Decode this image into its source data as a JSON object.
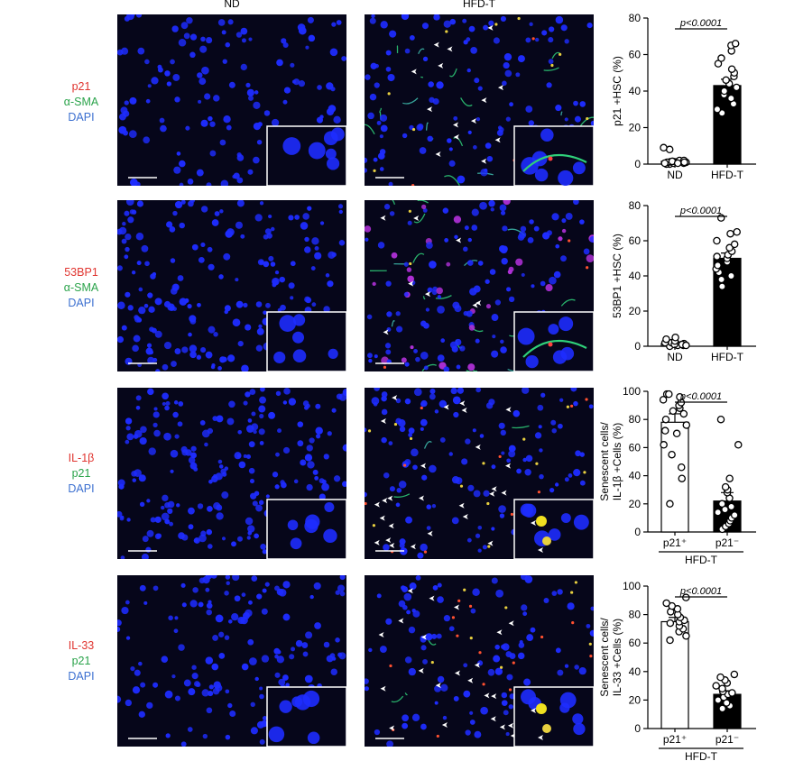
{
  "columns": [
    "ND",
    "HFD-T"
  ],
  "colors": {
    "red": "#e0342f",
    "green": "#2aa34a",
    "blue": "#3b6fd0",
    "nucleus": "#1e2cff",
    "background": "#06061a"
  },
  "rows": [
    {
      "stain": [
        {
          "text": "p21",
          "color": "#e0342f"
        },
        {
          "text": "α-SMA",
          "color": "#2aa34a"
        },
        {
          "text": "DAPI",
          "color": "#3b6fd0"
        }
      ]
    },
    {
      "stain": [
        {
          "text": "53BP1",
          "color": "#e0342f"
        },
        {
          "text": "α-SMA",
          "color": "#2aa34a"
        },
        {
          "text": "DAPI",
          "color": "#3b6fd0"
        }
      ]
    },
    {
      "stain": [
        {
          "text": "IL-1β",
          "color": "#e0342f"
        },
        {
          "text": "p21",
          "color": "#2aa34a"
        },
        {
          "text": "DAPI",
          "color": "#3b6fd0"
        }
      ]
    },
    {
      "stain": [
        {
          "text": "IL-33",
          "color": "#e0342f"
        },
        {
          "text": "p21",
          "color": "#2aa34a"
        },
        {
          "text": "DAPI",
          "color": "#3b6fd0"
        }
      ]
    }
  ],
  "chart_data": [
    {
      "type": "bar",
      "categories": [
        "ND",
        "HFD-T"
      ],
      "ylabel": "p21 +HSC (%)",
      "ylim": [
        0,
        80
      ],
      "yticks": [
        0,
        20,
        40,
        60,
        80
      ],
      "pvalue": "p<0.0001",
      "group_label": "",
      "fills": [
        "#ffffff",
        "#000000"
      ],
      "series": [
        {
          "values": [
            1.5,
            43
          ],
          "error": [
            1.5,
            3.5
          ],
          "points": [
            [
              0,
              0.5,
              1,
              1.5,
              2,
              0,
              0.5,
              1,
              2,
              1.5,
              0.5,
              1,
              8,
              9,
              0.5
            ],
            [
              28,
              30,
              33,
              36,
              38,
              40,
              42,
              44,
              46,
              48,
              50,
              52,
              55,
              62,
              65,
              66,
              58
            ]
          ]
        }
      ]
    },
    {
      "type": "bar",
      "categories": [
        "ND",
        "HFD-T"
      ],
      "ylabel": "53BP1 +HSC (%)",
      "ylim": [
        0,
        80
      ],
      "yticks": [
        0,
        20,
        40,
        60,
        80
      ],
      "pvalue": "p<0.0001",
      "group_label": "",
      "fills": [
        "#ffffff",
        "#000000"
      ],
      "series": [
        {
          "values": [
            1.5,
            50
          ],
          "error": [
            1,
            3
          ],
          "points": [
            [
              0,
              0.5,
              1,
              1.5,
              2,
              0.5,
              1,
              2,
              3,
              4,
              5,
              1,
              0.5
            ],
            [
              34,
              38,
              40,
              42,
              44,
              46,
              48,
              50,
              51,
              52,
              54,
              56,
              58,
              60,
              64,
              65,
              73
            ]
          ]
        }
      ]
    },
    {
      "type": "bar",
      "categories": [
        "p21⁺",
        "p21⁻"
      ],
      "ylabel": "Senescent cells/ IL-1β +Cells (%)",
      "ylim": [
        0,
        100
      ],
      "yticks": [
        0,
        20,
        40,
        60,
        80,
        100
      ],
      "pvalue": "p<0.0001",
      "group_label": "HFD-T",
      "fills": [
        "#ffffff",
        "#000000"
      ],
      "series": [
        {
          "values": [
            78,
            22
          ],
          "error": [
            6,
            6
          ],
          "points": [
            [
              20,
              38,
              46,
              55,
              62,
              70,
              72,
              76,
              80,
              84,
              86,
              88,
              90,
              92,
              94,
              96,
              98,
              98
            ],
            [
              2,
              4,
              6,
              8,
              10,
              12,
              14,
              16,
              18,
              20,
              24,
              28,
              30,
              32,
              38,
              62,
              80
            ]
          ]
        }
      ]
    },
    {
      "type": "bar",
      "categories": [
        "p21⁺",
        "p21⁻"
      ],
      "ylabel": "Senescent cells/ IL-33 +Cells (%)",
      "ylim": [
        0,
        100
      ],
      "yticks": [
        0,
        20,
        40,
        60,
        80,
        100
      ],
      "pvalue": "p<0.0001",
      "group_label": "HFD-T",
      "fills": [
        "#ffffff",
        "#000000"
      ],
      "series": [
        {
          "values": [
            75,
            24
          ],
          "error": [
            3,
            2.5
          ],
          "points": [
            [
              62,
              65,
              68,
              70,
              72,
              74,
              75,
              76,
              78,
              80,
              82,
              84,
              86,
              88,
              92
            ],
            [
              14,
              16,
              18,
              20,
              22,
              24,
              25,
              26,
              28,
              30,
              32,
              34,
              36,
              38
            ]
          ]
        }
      ]
    }
  ]
}
